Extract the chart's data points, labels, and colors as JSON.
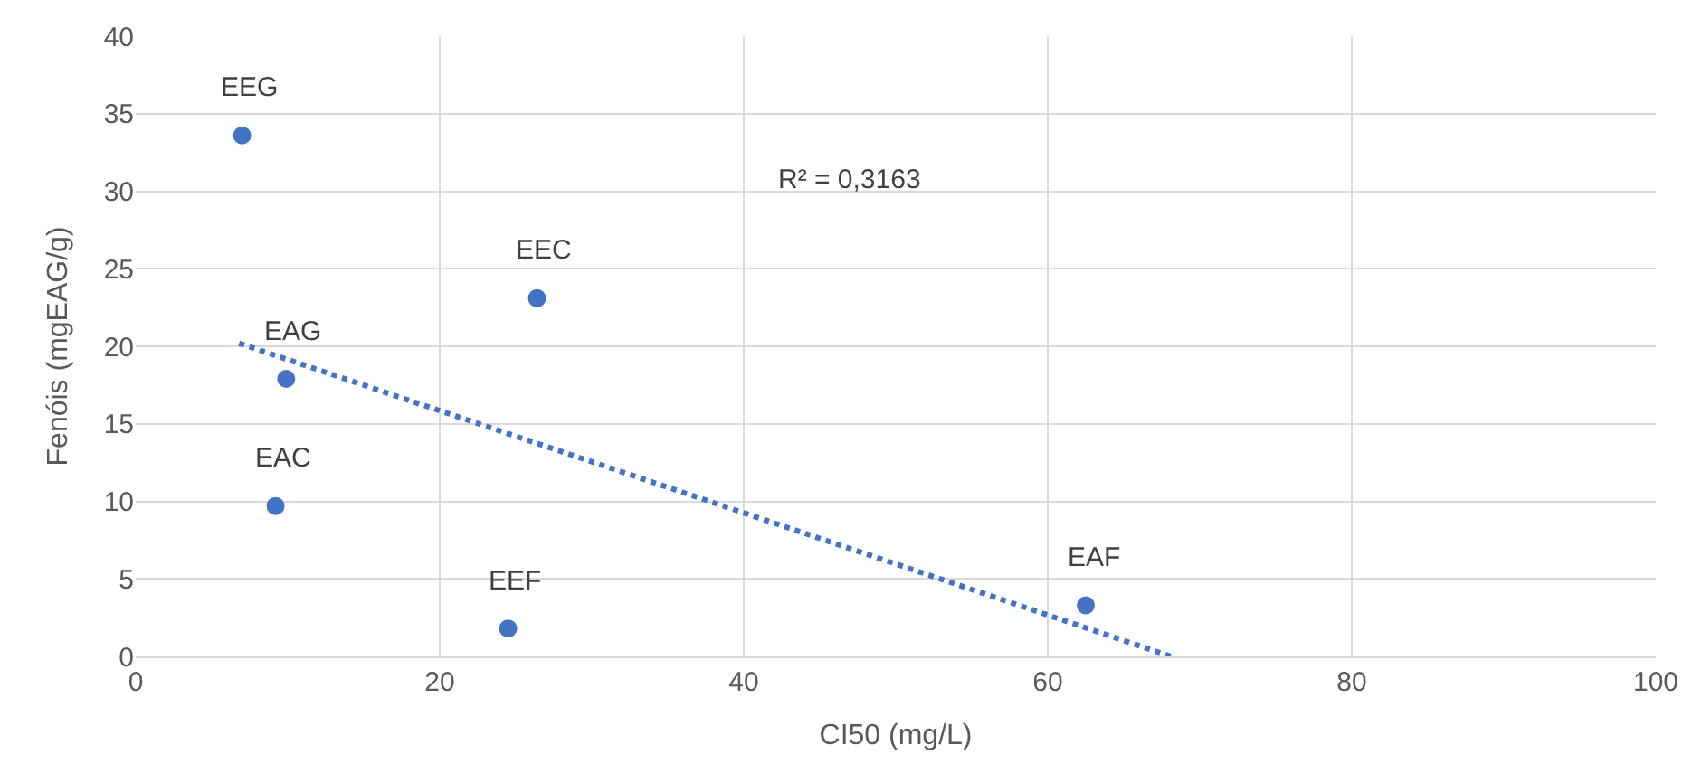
{
  "chart_data": {
    "type": "scatter",
    "xlabel": "CI50 (mg/L)",
    "ylabel": "Fenóis (mgEAG/g)",
    "series": [
      {
        "color": "#4472c4",
        "marker": "circle",
        "x": [
          7.0,
          9.9,
          9.2,
          26.4,
          24.5,
          62.5
        ],
        "values": [
          33.6,
          17.9,
          9.7,
          23.1,
          1.8,
          3.3
        ]
      },
      {
        "type": "line",
        "color": "#4472c4",
        "line_style": "dotted",
        "marker": "none",
        "x": [
          6.8,
          68.1
        ],
        "values": [
          20.2,
          0
        ]
      }
    ],
    "annotations": [
      {
        "text": "EEG",
        "x": 7.0,
        "y": 33.6
      },
      {
        "text": "EAG",
        "x": 9.9,
        "y": 17.9
      },
      {
        "text": "EAC",
        "x": 9.2,
        "y": 9.7
      },
      {
        "text": "EEC",
        "x": 26.4,
        "y": 23.1
      },
      {
        "text": "EEF",
        "x": 24.5,
        "y": 1.8
      },
      {
        "text": "EAF",
        "x": 62.5,
        "y": 3.3
      },
      "R² = 0,3163"
    ],
    "xlim": [
      0,
      100
    ],
    "xticks": [
      0,
      20,
      40,
      60,
      80,
      100
    ],
    "ylim": [
      0,
      40
    ],
    "yticks": [
      0,
      5,
      10,
      15,
      20,
      25,
      30,
      35,
      40
    ],
    "grid": true
  }
}
